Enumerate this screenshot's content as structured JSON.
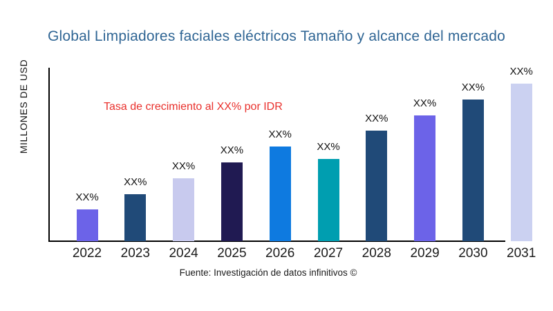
{
  "page": {
    "background": "#ffffff"
  },
  "title": {
    "text": "Global Limpiadores faciales eléctricos Tamaño y alcance del mercado",
    "color": "#2F6594"
  },
  "annotation": {
    "text": "Tasa de crecimiento al XX% por IDR",
    "color": "#E9302C"
  },
  "axes": {
    "y_label": "MILLONES DE USD",
    "x_label": "",
    "axis_color": "#000000",
    "tick_label_color": "#1a1a1a"
  },
  "footer": {
    "text": "Fuente: Investigación de datos infinitivos ©"
  },
  "chart_data": {
    "type": "bar",
    "title": "Global Limpiadores faciales eléctricos Tamaño y alcance del mercado",
    "categories": [
      "2022",
      "2023",
      "2024",
      "2025",
      "2026",
      "2027",
      "2028",
      "2029",
      "2030",
      "2031"
    ],
    "values": [
      20,
      30,
      40,
      50,
      60,
      52,
      70,
      80,
      90,
      100
    ],
    "values_note": "relative bar heights in percent of tallest bar; numeric figures are masked as XX% in the chart itself",
    "value_labels": [
      "XX%",
      "XX%",
      "XX%",
      "XX%",
      "XX%",
      "XX%",
      "XX%",
      "XX%",
      "XX%",
      "XX%"
    ],
    "bar_colors": [
      "#6C63E8",
      "#204A78",
      "#C8CAEE",
      "#201A52",
      "#0E7AE0",
      "#009EB0",
      "#204A78",
      "#6C63E8",
      "#204A78",
      "#CBD1F1"
    ],
    "xlabel": "",
    "ylabel": "MILLONES DE USD",
    "ylim": [
      0,
      100
    ],
    "grid": false,
    "legend": false,
    "annotation": "Tasa de crecimiento al XX% por IDR"
  }
}
